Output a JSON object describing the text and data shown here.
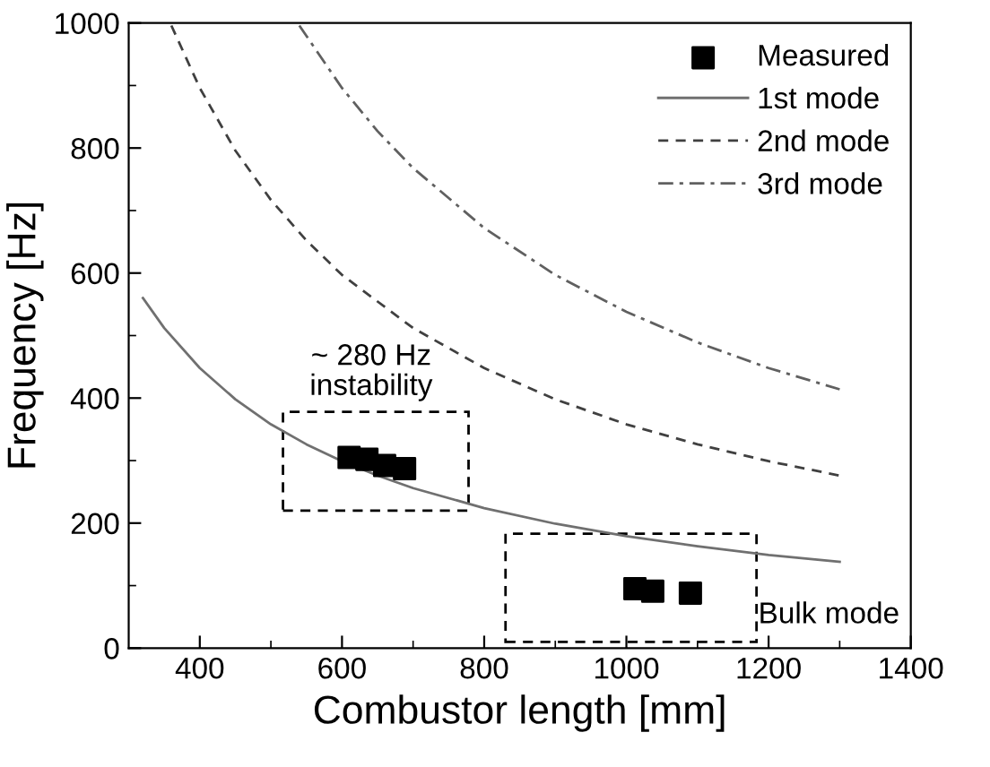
{
  "chart_data": {
    "type": "line",
    "xlabel": "Combustor length [mm]",
    "ylabel": "Frequency [Hz]",
    "xlim": [
      300,
      1400
    ],
    "ylim": [
      0,
      1000
    ],
    "xticks": [
      400,
      600,
      800,
      1000,
      1200,
      1400
    ],
    "yticks": [
      0,
      200,
      400,
      600,
      800,
      1000
    ],
    "legend": "top right",
    "series": [
      {
        "name": "Measured",
        "type": "scatter",
        "marker": "square",
        "color": "#000000",
        "x": [
          610,
          635,
          660,
          688,
          1012,
          1037,
          1090
        ],
        "values": [
          305,
          302,
          292,
          287,
          95,
          91,
          88
        ]
      },
      {
        "name": "1st mode",
        "line_style": "solid",
        "color": "#707070",
        "x": [
          320,
          350,
          400,
          450,
          500,
          550,
          600,
          650,
          700,
          800,
          900,
          1000,
          1100,
          1200,
          1300
        ],
        "values": [
          560,
          512,
          448,
          398,
          358,
          326,
          299,
          276,
          256,
          224,
          199,
          179,
          163,
          149,
          138
        ]
      },
      {
        "name": "2nd mode",
        "line_style": "dashed",
        "color": "#404040",
        "x": [
          360,
          400,
          450,
          500,
          550,
          600,
          700,
          800,
          900,
          1000,
          1100,
          1200,
          1300
        ],
        "values": [
          996,
          896,
          796,
          717,
          652,
          597,
          512,
          448,
          398,
          358,
          326,
          299,
          276
        ]
      },
      {
        "name": "3rd mode",
        "line_style": "dashdot",
        "color": "#606060",
        "x": [
          540,
          600,
          650,
          700,
          800,
          900,
          1000,
          1100,
          1200,
          1300
        ],
        "values": [
          996,
          896,
          827,
          768,
          672,
          597,
          538,
          489,
          448,
          414
        ]
      }
    ],
    "annotations": [
      "~ 280 Hz\ninstability",
      "Bulk mode"
    ]
  }
}
